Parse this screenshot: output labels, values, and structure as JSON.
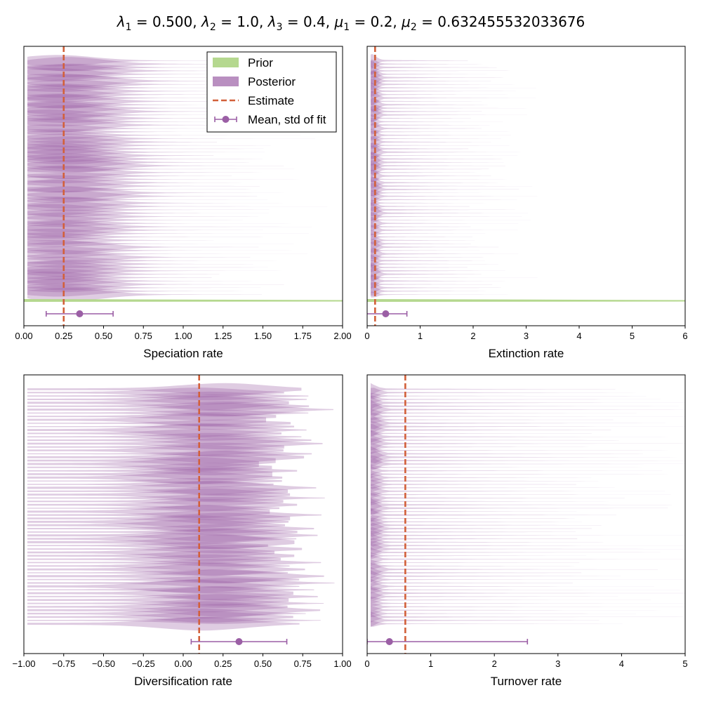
{
  "figure": {
    "title_parts": [
      {
        "t": "λ",
        "sub": "1",
        "rest": " = 0.500, "
      },
      {
        "t": "λ",
        "sub": "2",
        "rest": " = 1.0, "
      },
      {
        "t": "λ",
        "sub": "3",
        "rest": " = 0.4, "
      },
      {
        "t": "μ",
        "sub": "1",
        "rest": " = 0.2, "
      },
      {
        "t": "μ",
        "sub": "2",
        "rest": " = 0.632455532033676"
      }
    ],
    "title_text": "λ1 = 0.500, λ2 = 1.0, λ3 = 0.4, μ1 = 0.2, μ2 = 0.632455532033676"
  },
  "colors": {
    "prior": "#b5d88f",
    "posterior": "#9b5fa5",
    "estimate": "#d2603a",
    "fit": "#9b5fa5"
  },
  "legend": {
    "placement": "top-right of first panel",
    "entries": [
      {
        "label": "Prior",
        "kind": "patch",
        "color": "#b5d88f"
      },
      {
        "label": "Posterior",
        "kind": "patch",
        "color": "#9b5fa5"
      },
      {
        "label": "Estimate",
        "kind": "dashed-line",
        "color": "#d2603a"
      },
      {
        "label": "Mean, std of fit",
        "kind": "errorbar",
        "color": "#9b5fa5"
      }
    ]
  },
  "chart_data": [
    {
      "type": "area",
      "xlabel": "Speciation rate",
      "xlim": [
        0.0,
        2.0
      ],
      "xticks": [
        "0.00",
        "0.25",
        "0.50",
        "0.75",
        "1.00",
        "1.25",
        "1.50",
        "1.75",
        "2.00"
      ],
      "xtick_values": [
        0.0,
        0.25,
        0.5,
        0.75,
        1.0,
        1.25,
        1.5,
        1.75,
        2.0
      ],
      "estimate": 0.25,
      "fit_mean": 0.35,
      "fit_std": 0.21,
      "prior_visible": true,
      "posterior": {
        "mode": 0.25,
        "width": 0.22,
        "tail": 1.3,
        "layers": 70
      },
      "grid": false
    },
    {
      "type": "area",
      "xlabel": "Extinction rate",
      "xlim": [
        0,
        6
      ],
      "xticks": [
        "0",
        "1",
        "2",
        "3",
        "4",
        "5",
        "6"
      ],
      "xtick_values": [
        0,
        1,
        2,
        3,
        4,
        5,
        6
      ],
      "estimate": 0.15,
      "fit_mean": 0.35,
      "fit_std": 0.4,
      "prior_visible": true,
      "posterior": {
        "mode": 0.1,
        "width": 0.08,
        "tail": 2.5,
        "layers": 70
      },
      "grid": false
    },
    {
      "type": "area",
      "xlabel": "Diversification rate",
      "xlim": [
        -1.0,
        1.0
      ],
      "xticks": [
        "−1.00",
        "−0.75",
        "−0.50",
        "−0.25",
        "0.00",
        "0.25",
        "0.50",
        "0.75",
        "1.00"
      ],
      "xtick_values": [
        -1.0,
        -0.75,
        -0.5,
        -0.25,
        0.0,
        0.25,
        0.5,
        0.75,
        1.0
      ],
      "estimate": 0.1,
      "fit_mean": 0.35,
      "fit_std": 0.3,
      "prior_visible": false,
      "posterior": {
        "mode": 0.2,
        "width": 0.28,
        "tail": 0.5,
        "layers": 70
      },
      "grid": false
    },
    {
      "type": "area",
      "xlabel": "Turnover rate",
      "xlim": [
        0,
        5
      ],
      "xticks": [
        "0",
        "1",
        "2",
        "3",
        "4",
        "5"
      ],
      "xtick_values": [
        0,
        1,
        2,
        3,
        4,
        5
      ],
      "estimate": 0.6,
      "fit_mean": 0.35,
      "fit_std": 2.17,
      "fit_lower": 0.0,
      "fit_upper": 2.52,
      "prior_visible": false,
      "posterior": {
        "mode": 0.05,
        "width": 0.1,
        "tail": 4.5,
        "layers": 70
      },
      "grid": false
    }
  ]
}
